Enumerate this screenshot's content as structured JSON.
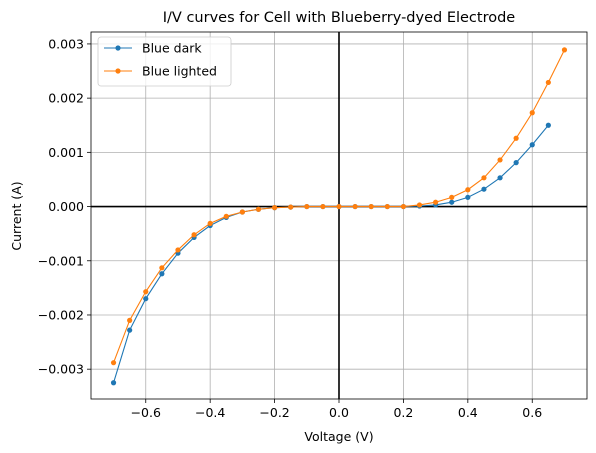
{
  "chart_data": {
    "type": "line",
    "title": "I/V curves for Cell with Blueberry-dyed Electrode",
    "xlabel": "Voltage (V)",
    "ylabel": "Current (A)",
    "xlim": [
      -0.77,
      0.77
    ],
    "ylim": [
      -0.00355,
      0.00322
    ],
    "xticks": [
      -0.6,
      -0.4,
      -0.2,
      0.0,
      0.2,
      0.4,
      0.6
    ],
    "xtick_labels": [
      "−0.6",
      "−0.4",
      "−0.2",
      "0.0",
      "0.2",
      "0.4",
      "0.6"
    ],
    "yticks": [
      -0.003,
      -0.002,
      -0.001,
      0.0,
      0.001,
      0.002,
      0.003
    ],
    "ytick_labels": [
      "−0.003",
      "−0.002",
      "−0.001",
      "0.000",
      "0.001",
      "0.002",
      "0.003"
    ],
    "grid": true,
    "legend_position": "top-left",
    "reference_lines": {
      "x": 0,
      "y": 0,
      "color": "#000000"
    },
    "series": [
      {
        "name": "Blue dark",
        "color": "#1f77b4",
        "x": [
          -0.7,
          -0.65,
          -0.6,
          -0.55,
          -0.5,
          -0.45,
          -0.4,
          -0.35,
          -0.3,
          -0.25,
          -0.2,
          -0.15,
          -0.1,
          -0.05,
          0.0,
          0.05,
          0.1,
          0.15,
          0.2,
          0.25,
          0.3,
          0.35,
          0.4,
          0.45,
          0.5,
          0.55,
          0.6,
          0.65
        ],
        "y": [
          -0.00325,
          -0.00228,
          -0.0017,
          -0.00124,
          -0.00086,
          -0.00057,
          -0.00035,
          -0.0002,
          -0.0001,
          -5e-05,
          -2e-05,
          -1e-05,
          0.0,
          0.0,
          0.0,
          0.0,
          0.0,
          0.0,
          0.0,
          1e-05,
          3e-05,
          8e-05,
          0.00017,
          0.00032,
          0.00053,
          0.00081,
          0.00114,
          0.0015
        ]
      },
      {
        "name": "Blue lighted",
        "color": "#ff7f0e",
        "x": [
          -0.7,
          -0.65,
          -0.6,
          -0.55,
          -0.5,
          -0.45,
          -0.4,
          -0.35,
          -0.3,
          -0.25,
          -0.2,
          -0.15,
          -0.1,
          -0.05,
          0.0,
          0.05,
          0.1,
          0.15,
          0.2,
          0.25,
          0.3,
          0.35,
          0.4,
          0.45,
          0.5,
          0.55,
          0.6,
          0.65,
          0.7
        ],
        "y": [
          -0.00288,
          -0.0021,
          -0.00157,
          -0.00113,
          -0.0008,
          -0.00052,
          -0.00031,
          -0.00018,
          -0.0001,
          -5e-05,
          -2e-05,
          -1e-05,
          0.0,
          0.0,
          0.0,
          0.0,
          0.0,
          0.0,
          0.0,
          3e-05,
          8e-05,
          0.00017,
          0.00031,
          0.00053,
          0.00086,
          0.00126,
          0.00173,
          0.00229,
          0.00289
        ]
      }
    ]
  }
}
